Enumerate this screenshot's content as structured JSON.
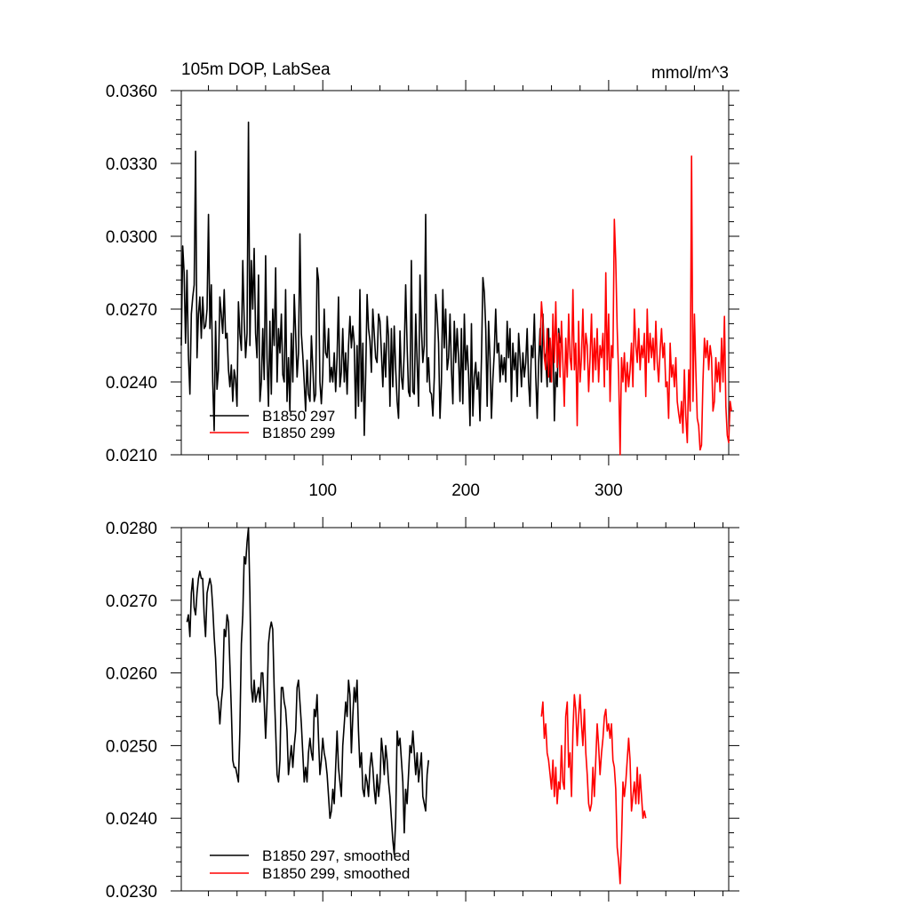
{
  "figure": {
    "title_left": "105m DOP, LabSea",
    "title_right": "mmol/m^3"
  },
  "chart_data": [
    {
      "type": "line",
      "title": "105m DOP, LabSea",
      "units": "mmol/m^3",
      "xlim": [
        1,
        384
      ],
      "ylim": [
        0.021,
        0.036
      ],
      "x_ticks": [
        100,
        200,
        300
      ],
      "x_tick_labels": [
        "100",
        "200",
        "300"
      ],
      "y_ticks": [
        0.021,
        0.024,
        0.027,
        0.03,
        0.033,
        0.036
      ],
      "y_tick_labels": [
        "0.0210",
        "0.0240",
        "0.0270",
        "0.0300",
        "0.0330",
        "0.0360"
      ],
      "legend_position": "bottom-left",
      "series": [
        {
          "name": "B1850 297",
          "color": "#000000",
          "x_start": 1,
          "values": [
            0.0255,
            0.0296,
            0.0285,
            0.0256,
            0.0286,
            0.0251,
            0.0235,
            0.0268,
            0.0275,
            0.028,
            0.0335,
            0.025,
            0.0268,
            0.0275,
            0.0258,
            0.0275,
            0.0262,
            0.0263,
            0.027,
            0.0309,
            0.0262,
            0.028,
            0.024,
            0.022,
            0.0265,
            0.0237,
            0.0245,
            0.0275,
            0.0268,
            0.026,
            0.0278,
            0.0258,
            0.026,
            0.0245,
            0.0238,
            0.0247,
            0.0232,
            0.0245,
            0.0241,
            0.023,
            0.0273,
            0.026,
            0.0253,
            0.029,
            0.0265,
            0.025,
            0.026,
            0.0347,
            0.0255,
            0.029,
            0.027,
            0.0295,
            0.026,
            0.025,
            0.0284,
            0.0232,
            0.024,
            0.0262,
            0.0241,
            0.0292,
            0.025,
            0.023,
            0.0265,
            0.0235,
            0.027,
            0.0255,
            0.0287,
            0.024,
            0.0262,
            0.0252,
            0.0268,
            0.0243,
            0.024,
            0.0278,
            0.0232,
            0.025,
            0.0228,
            0.026,
            0.024,
            0.0276,
            0.026,
            0.0242,
            0.0252,
            0.0301,
            0.026,
            0.0251,
            0.024,
            0.0228,
            0.0249,
            0.0235,
            0.0232,
            0.0259,
            0.0246,
            0.0232,
            0.0235,
            0.0287,
            0.0282,
            0.024,
            0.0231,
            0.0243,
            0.027,
            0.0252,
            0.025,
            0.0262,
            0.024,
            0.0246,
            0.024,
            0.0252,
            0.0236,
            0.025,
            0.0275,
            0.0238,
            0.0244,
            0.0262,
            0.024,
            0.0252,
            0.0235,
            0.0255,
            0.0267,
            0.0254,
            0.0263,
            0.0256,
            0.0225,
            0.0255,
            0.023,
            0.0278,
            0.0232,
            0.0256,
            0.0218,
            0.0243,
            0.0276,
            0.0262,
            0.0257,
            0.0244,
            0.027,
            0.026,
            0.025,
            0.0248,
            0.0268,
            0.0265,
            0.0252,
            0.0238,
            0.0256,
            0.0242,
            0.0267,
            0.0259,
            0.023,
            0.0262,
            0.0238,
            0.0263,
            0.0245,
            0.0232,
            0.0225,
            0.0261,
            0.0242,
            0.0237,
            0.0253,
            0.028,
            0.0255,
            0.0236,
            0.0234,
            0.029,
            0.0236,
            0.0235,
            0.0268,
            0.0248,
            0.023,
            0.0284,
            0.0262,
            0.0248,
            0.0255,
            0.0309,
            0.024,
            0.025,
            0.0236,
            0.0235,
            0.0226,
            0.0242,
            0.0276,
            0.0268,
            0.0256,
            0.0225,
            0.024,
            0.0278,
            0.0254,
            0.027,
            0.0245,
            0.025,
            0.0268,
            0.0245,
            0.0231,
            0.0265,
            0.0248,
            0.0262,
            0.025,
            0.0232,
            0.0262,
            0.0231,
            0.0268,
            0.0245,
            0.0255,
            0.0243,
            0.0222,
            0.0264,
            0.0226,
            0.0242,
            0.0248,
            0.0237,
            0.0244,
            0.0224,
            0.025,
            0.0283,
            0.0277,
            0.0262,
            0.023,
            0.0265,
            0.025,
            0.0225,
            0.0241,
            0.0252,
            0.027,
            0.0252,
            0.0256,
            0.024,
            0.0251,
            0.0243,
            0.025,
            0.024,
            0.0265,
            0.025,
            0.0262,
            0.0232,
            0.0256,
            0.0245,
            0.0252,
            0.0234,
            0.026,
            0.025,
            0.0238,
            0.0252,
            0.0242,
            0.0248,
            0.0262,
            0.024,
            0.023,
            0.0255,
            0.025,
            0.0268,
            0.0242,
            0.0225,
            0.0248,
            0.0262,
            0.024,
            0.0268,
            0.0252,
            0.025,
            0.0238,
            0.0262,
            0.024,
            0.025,
            0.026,
            0.0224,
            0.0244,
            0.0238,
            0.0262,
            0.0256
          ]
        },
        {
          "name": "B1850 299",
          "color": "#ff0000",
          "x_start": 252,
          "values": [
            0.0255,
            0.0273,
            0.0265,
            0.025,
            0.0245,
            0.0262,
            0.0242,
            0.0258,
            0.024,
            0.0268,
            0.0248,
            0.0273,
            0.0246,
            0.026,
            0.0242,
            0.0265,
            0.0248,
            0.023,
            0.0258,
            0.0242,
            0.0268,
            0.025,
            0.0245,
            0.0278,
            0.0245,
            0.0256,
            0.0222,
            0.0265,
            0.024,
            0.025,
            0.027,
            0.0245,
            0.026,
            0.0255,
            0.0236,
            0.025,
            0.0268,
            0.024,
            0.0258,
            0.0245,
            0.0262,
            0.024,
            0.0255,
            0.025,
            0.026,
            0.0238,
            0.0285,
            0.0245,
            0.0268,
            0.0232,
            0.0255,
            0.025,
            0.0307,
            0.029,
            0.0262,
            0.0242,
            0.021,
            0.025,
            0.024,
            0.0252,
            0.0236,
            0.0248,
            0.0238,
            0.0245,
            0.0256,
            0.0238,
            0.027,
            0.0255,
            0.0248,
            0.0262,
            0.0245,
            0.0255,
            0.025,
            0.026,
            0.0234,
            0.027,
            0.0248,
            0.026,
            0.025,
            0.0258,
            0.0245,
            0.0265,
            0.0248,
            0.024,
            0.0253,
            0.0262,
            0.025,
            0.0256,
            0.0238,
            0.024,
            0.0225,
            0.0256,
            0.0242,
            0.0247,
            0.0238,
            0.025,
            0.0232,
            0.0227,
            0.0223,
            0.0232,
            0.0219,
            0.0245,
            0.0226,
            0.0215,
            0.0245,
            0.0228,
            0.0333,
            0.0232,
            0.0268,
            0.0245,
            0.0225,
            0.0222,
            0.0212,
            0.0214,
            0.024,
            0.0258,
            0.025,
            0.0257,
            0.0245,
            0.0255,
            0.025,
            0.0228,
            0.0232,
            0.025,
            0.024,
            0.0248,
            0.0236,
            0.0258,
            0.024,
            0.0267,
            0.023,
            0.0218,
            0.0215,
            0.0232,
            0.0228
          ]
        }
      ]
    },
    {
      "type": "line",
      "xlim": [
        1,
        384
      ],
      "ylim": [
        0.023,
        0.028
      ],
      "x_ticks": [
        100,
        200,
        300
      ],
      "y_ticks": [
        0.023,
        0.024,
        0.025,
        0.026,
        0.027,
        0.028
      ],
      "y_tick_labels": [
        "0.0230",
        "0.0240",
        "0.0250",
        "0.0260",
        "0.0270",
        "0.0280"
      ],
      "legend_position": "bottom-left",
      "series": [
        {
          "name": "B1850 297, smoothed",
          "color": "#000000",
          "x_start": 5,
          "values": [
            0.0267,
            0.0268,
            0.0265,
            0.0271,
            0.0273,
            0.0269,
            0.0268,
            0.0271,
            0.0273,
            0.0274,
            0.0273,
            0.0273,
            0.0268,
            0.0265,
            0.0271,
            0.0272,
            0.0273,
            0.0272,
            0.0269,
            0.0265,
            0.0262,
            0.0257,
            0.0256,
            0.0253,
            0.0256,
            0.0258,
            0.0266,
            0.0265,
            0.0268,
            0.0267,
            0.0261,
            0.0255,
            0.0248,
            0.0247,
            0.0247,
            0.0246,
            0.0245,
            0.0252,
            0.0264,
            0.0268,
            0.0276,
            0.0275,
            0.0278,
            0.028,
            0.0271,
            0.0258,
            0.0256,
            0.0259,
            0.0256,
            0.0257,
            0.0258,
            0.0256,
            0.026,
            0.026,
            0.0256,
            0.0251,
            0.0256,
            0.0264,
            0.0266,
            0.0267,
            0.0266,
            0.0258,
            0.0252,
            0.0246,
            0.0245,
            0.0248,
            0.0258,
            0.0258,
            0.0256,
            0.0255,
            0.0252,
            0.0246,
            0.0248,
            0.025,
            0.0247,
            0.025,
            0.0252,
            0.0258,
            0.0259,
            0.0256,
            0.0253,
            0.0249,
            0.0245,
            0.0247,
            0.0245,
            0.0249,
            0.0251,
            0.0249,
            0.0248,
            0.0255,
            0.0254,
            0.0257,
            0.0251,
            0.0246,
            0.0248,
            0.0251,
            0.0249,
            0.0248,
            0.0246,
            0.0243,
            0.024,
            0.0241,
            0.0244,
            0.0242,
            0.0247,
            0.0252,
            0.0247,
            0.0245,
            0.0243,
            0.025,
            0.0253,
            0.0256,
            0.0254,
            0.0259,
            0.0257,
            0.0249,
            0.0254,
            0.0258,
            0.0256,
            0.0259,
            0.0252,
            0.0247,
            0.0249,
            0.0244,
            0.0243,
            0.0246,
            0.0245,
            0.0243,
            0.0247,
            0.0249,
            0.0247,
            0.0244,
            0.0242,
            0.0246,
            0.0243,
            0.0245,
            0.0251,
            0.0249,
            0.0246,
            0.025,
            0.0248,
            0.0245,
            0.0243,
            0.024,
            0.0237,
            0.0235,
            0.024,
            0.0252,
            0.025,
            0.0251,
            0.0248,
            0.0245,
            0.0238,
            0.0244,
            0.0242,
            0.0246,
            0.025,
            0.0249,
            0.0252,
            0.0249,
            0.0246,
            0.0249,
            0.0245,
            0.0247,
            0.0249,
            0.0243,
            0.0242,
            0.0241,
            0.0246,
            0.0248
          ]
        },
        {
          "name": "B1850 299, smoothed",
          "color": "#ff0000",
          "x_start": 253,
          "values": [
            0.0254,
            0.0256,
            0.0251,
            0.0253,
            0.0249,
            0.0248,
            0.0246,
            0.0244,
            0.0248,
            0.0243,
            0.0247,
            0.0242,
            0.0245,
            0.0244,
            0.025,
            0.0245,
            0.0244,
            0.0254,
            0.0256,
            0.0247,
            0.0249,
            0.0243,
            0.0252,
            0.0257,
            0.0255,
            0.025,
            0.0254,
            0.0257,
            0.0253,
            0.025,
            0.0255,
            0.0249,
            0.0246,
            0.0242,
            0.0241,
            0.0242,
            0.0247,
            0.0243,
            0.0248,
            0.0253,
            0.025,
            0.0246,
            0.0249,
            0.0251,
            0.0254,
            0.0255,
            0.0252,
            0.0253,
            0.0251,
            0.0253,
            0.0248,
            0.0247,
            0.0244,
            0.0236,
            0.0234,
            0.0231,
            0.0237,
            0.0245,
            0.0243,
            0.0245,
            0.0248,
            0.0251,
            0.0248,
            0.0241,
            0.0243,
            0.0245,
            0.0242,
            0.0247,
            0.0242,
            0.0246,
            0.0243,
            0.024,
            0.0241,
            0.024
          ]
        }
      ]
    }
  ]
}
